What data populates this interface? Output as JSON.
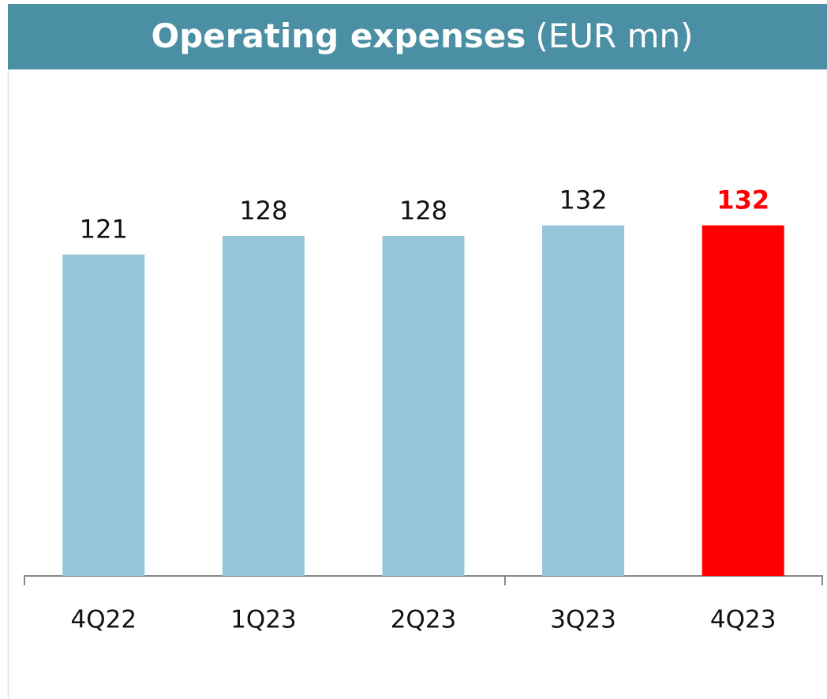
{
  "chart_data": {
    "type": "bar",
    "title": "Operating expenses",
    "subtitle": "(EUR mn)",
    "categories": [
      "4Q22",
      "1Q23",
      "2Q23",
      "3Q23",
      "4Q23"
    ],
    "values": [
      121,
      128,
      128,
      132,
      132
    ],
    "colors": [
      "#96c5d9",
      "#96c5d9",
      "#96c5d9",
      "#96c5d9",
      "#ff0000"
    ],
    "highlight_color": "#ff0000",
    "ylim": [
      0,
      150
    ]
  }
}
